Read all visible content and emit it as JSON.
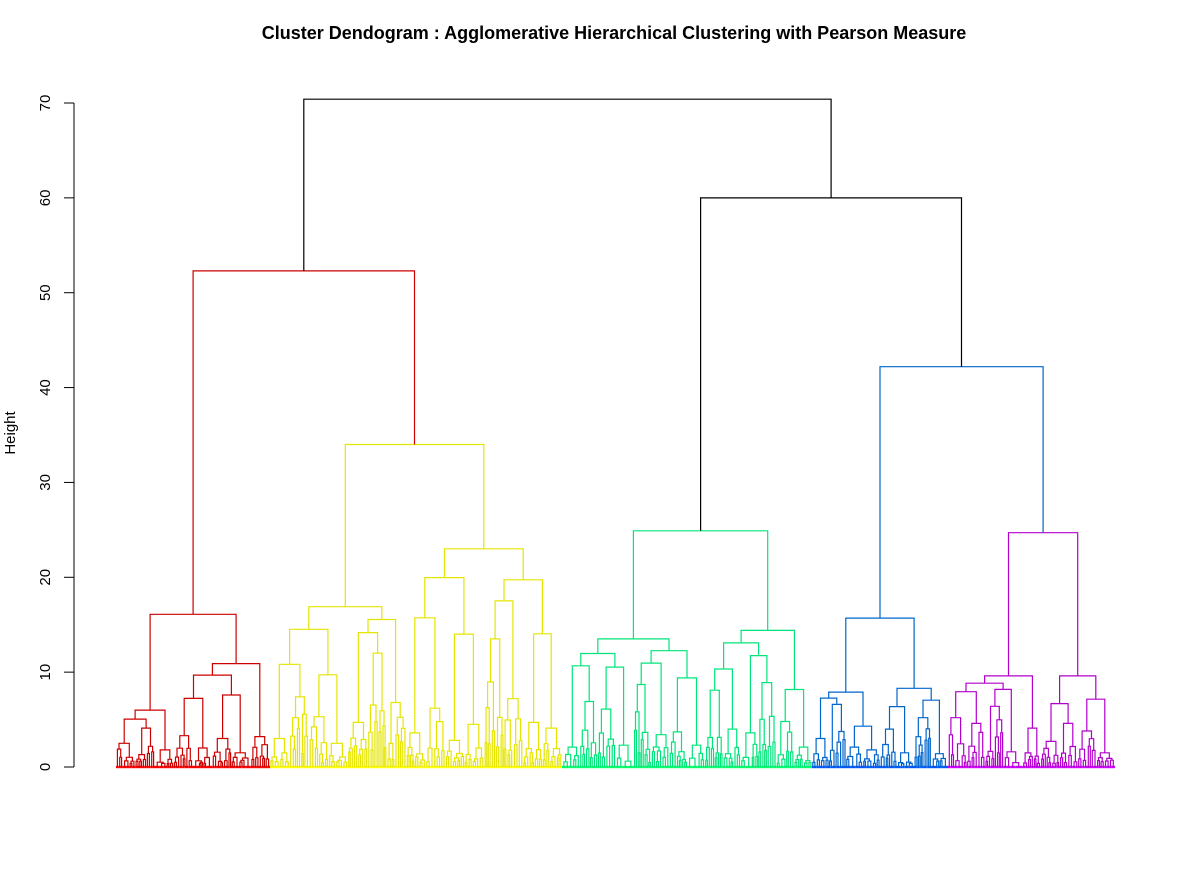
{
  "chart_data": {
    "type": "dendrogram",
    "title": "Cluster Dendogram : Agglomerative Hierarchical Clustering with Pearson Measure",
    "xlabel": "",
    "ylabel": "Height",
    "ylim": [
      0,
      70
    ],
    "yticks": [
      0,
      10,
      20,
      30,
      40,
      50,
      60,
      70
    ],
    "ytick_labels": [
      "0",
      "10",
      "20",
      "30",
      "40",
      "50",
      "60",
      "70"
    ],
    "leaf_labels_shown": false,
    "link_color_default": "#000000",
    "clusters": [
      {
        "name": "1",
        "color": "#cc0000",
        "leaf_color": "#ff0000",
        "merge_height": 16.1,
        "subgroups": [
          {
            "height": 6.0,
            "weight": 4
          },
          {
            "height": 10.9,
            "weight": 6
          }
        ],
        "bottom_heights": [
          2.5,
          4.1,
          1.8,
          3.3,
          2.0,
          3.0,
          1.5,
          3.2
        ]
      },
      {
        "name": "2",
        "color": "#e5e500",
        "leaf_color": "#ffff00",
        "merge_height": 34.0,
        "subgroups": [
          {
            "height": 16.9,
            "weight": 6
          },
          {
            "height": 23.0,
            "weight": 7
          }
        ],
        "bottom_heights": [
          3.0,
          7.4,
          5.3,
          2.5,
          4.7,
          12.0,
          6.8,
          3.6,
          6.2,
          2.8,
          4.5,
          13.5,
          7.2,
          4.7,
          4.1
        ]
      },
      {
        "name": "3",
        "color": "#00e57a",
        "leaf_color": "#00ff66",
        "merge_height": 24.9,
        "subgroups": [
          {
            "height": 13.5,
            "weight": 6
          },
          {
            "height": 14.4,
            "weight": 5
          }
        ],
        "bottom_heights": [
          2.1,
          6.9,
          6.1,
          2.3,
          8.7,
          3.4,
          3.7,
          2.3,
          8.1,
          4.0,
          3.6,
          8.9,
          4.8,
          2.1
        ]
      },
      {
        "name": "4",
        "color": "#0066cc",
        "leaf_color": "#0055ff",
        "merge_height": 15.7,
        "subgroups": [
          {
            "height": 7.9,
            "weight": 5
          },
          {
            "height": 8.3,
            "weight": 5
          }
        ],
        "bottom_heights": [
          3.0,
          6.6,
          2.1,
          1.8,
          4.0,
          1.5,
          5.2,
          1.4
        ]
      },
      {
        "name": "5",
        "color": "#b300cc",
        "leaf_color": "#cc00ff",
        "merge_height": 24.7,
        "subgroups": [
          {
            "height": 9.6,
            "weight": 5
          },
          {
            "height": 9.6,
            "weight": 5
          }
        ],
        "bottom_heights": [
          5.2,
          4.6,
          6.4,
          1.6,
          4.1,
          2.7,
          4.6,
          3.8,
          1.5
        ]
      }
    ],
    "merges": [
      {
        "clusters": [
          "1",
          "2"
        ],
        "height": 52.3,
        "color": "#cc0000"
      },
      {
        "clusters": [
          "4",
          "5"
        ],
        "height": 42.2,
        "color": "#0066cc"
      },
      {
        "clusters": [
          "3",
          "4+5"
        ],
        "height": 60.0,
        "color": "#000000"
      },
      {
        "clusters": [
          "1+2",
          "3+4+5"
        ],
        "height": 70.4,
        "color": "#000000"
      }
    ]
  }
}
